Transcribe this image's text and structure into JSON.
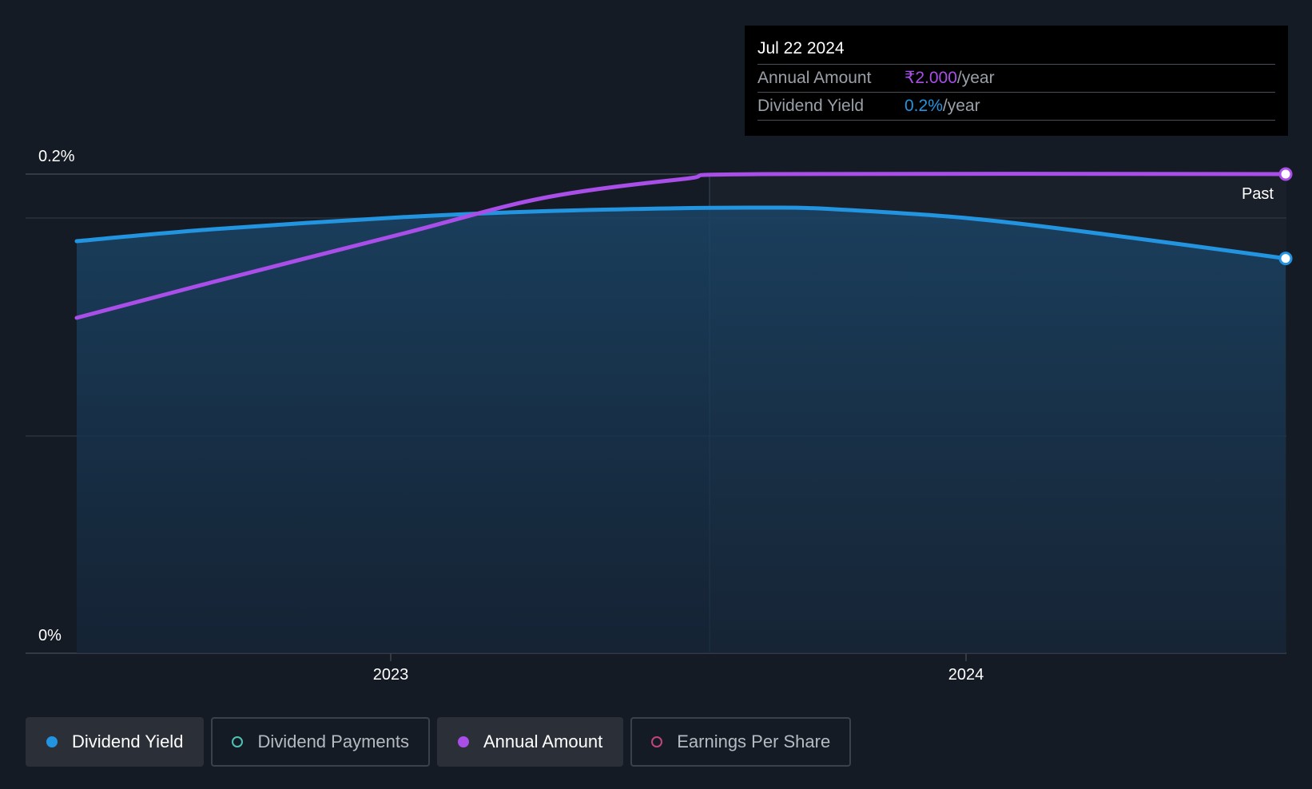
{
  "chart_data": {
    "type": "line",
    "x_axis": {
      "type": "date",
      "ticks": [
        "2023",
        "2024"
      ],
      "range": [
        "2022-06-05",
        "2024-07-22"
      ]
    },
    "y_axis": {
      "ticks": [
        "0.2%",
        "0%"
      ],
      "range": [
        0,
        0.2
      ]
    },
    "annotation": "Past",
    "series": [
      {
        "name": "Dividend Yield",
        "color": "#2394df",
        "area_fill": true,
        "points": [
          [
            "2022-06-05",
            0.172
          ],
          [
            "2022-09-01",
            0.177
          ],
          [
            "2022-12-31",
            0.182
          ],
          [
            "2023-04-01",
            0.1845
          ],
          [
            "2023-07-01",
            0.1858
          ],
          [
            "2023-08-21",
            0.186
          ],
          [
            "2023-10-01",
            0.1855
          ],
          [
            "2024-01-01",
            0.1815
          ],
          [
            "2024-04-01",
            0.1745
          ],
          [
            "2024-07-22",
            0.1648
          ]
        ]
      },
      {
        "name": "Annual Amount",
        "unit": "₹",
        "color": "#a94ee8",
        "points": [
          [
            "2022-06-05",
            1.4
          ],
          [
            "2022-09-01",
            1.55
          ],
          [
            "2022-12-31",
            1.75
          ],
          [
            "2023-04-01",
            1.9
          ],
          [
            "2023-07-01",
            1.98
          ],
          [
            "2023-08-21",
            2.0
          ],
          [
            "2024-07-22",
            2.0
          ]
        ]
      }
    ],
    "tooltip": {
      "date": "Jul 22 2024",
      "rows": [
        {
          "label": "Annual Amount",
          "value": "₹2.000",
          "unit": "/year",
          "color": "#a94ee8"
        },
        {
          "label": "Dividend Yield",
          "value": "0.2%",
          "unit": "/year",
          "color": "#2394df"
        }
      ]
    },
    "legend": [
      {
        "label": "Dividend Yield",
        "color": "#2394df",
        "active": true,
        "marker": "filled"
      },
      {
        "label": "Dividend Payments",
        "color": "#4fc1b4",
        "active": false,
        "marker": "hollow"
      },
      {
        "label": "Annual Amount",
        "color": "#a94ee8",
        "active": true,
        "marker": "filled"
      },
      {
        "label": "Earnings Per Share",
        "color": "#c0457e",
        "active": false,
        "marker": "hollow"
      }
    ]
  }
}
